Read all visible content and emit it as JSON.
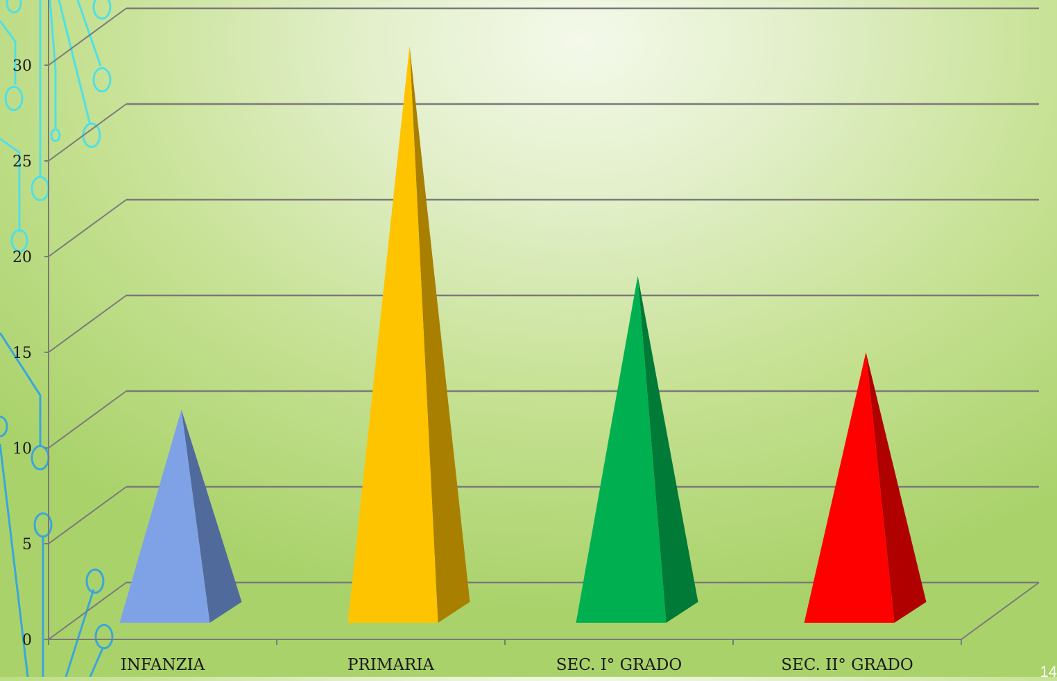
{
  "chart_data": {
    "type": "bar",
    "style": "3d-pyramid",
    "categories": [
      "INFANZIA",
      "PRIMARIA",
      "SEC. I° GRADO",
      "SEC. II° GRADO"
    ],
    "values": [
      12,
      31,
      19,
      15
    ],
    "bar_colors": [
      "#7fa2e6",
      "#ffc400",
      "#00b050",
      "#ff0000"
    ],
    "side_colors": [
      "#506a9c",
      "#a97f00",
      "#007a37",
      "#b00000"
    ],
    "yticks": [
      "0",
      "5",
      "10",
      "15",
      "20",
      "25",
      "30"
    ],
    "ylim": [
      0,
      35
    ],
    "grid": true,
    "legend": "none"
  },
  "page_number": "14",
  "colors": {
    "gridline": "#7a7a7a",
    "circuit_cyan": "#4fe0e6",
    "circuit_blue": "#3aa6dc"
  }
}
